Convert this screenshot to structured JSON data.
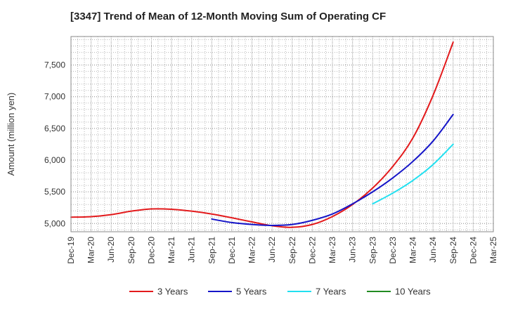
{
  "chart_data": {
    "type": "line",
    "title": "[3347]  Trend of Mean of 12-Month Moving Sum of Operating CF",
    "xlabel": "",
    "ylabel": "Amount (million yen)",
    "ylim": [
      4870,
      7950
    ],
    "yticks": [
      5000,
      5500,
      6000,
      6500,
      7000,
      7500
    ],
    "ytick_labels": [
      "5,000",
      "5,500",
      "6,000",
      "6,500",
      "7,000",
      "7,500"
    ],
    "x_categories": [
      "Dec-19",
      "Mar-20",
      "Jun-20",
      "Sep-20",
      "Dec-20",
      "Mar-21",
      "Jun-21",
      "Sep-21",
      "Dec-21",
      "Mar-22",
      "Jun-22",
      "Sep-22",
      "Dec-22",
      "Mar-23",
      "Jun-23",
      "Sep-23",
      "Dec-23",
      "Mar-24",
      "Jun-24",
      "Sep-24",
      "Dec-24",
      "Mar-25"
    ],
    "grid": true,
    "legend_position": "bottom",
    "series": [
      {
        "name": "3 Years",
        "color": "#e31a1c",
        "points": [
          {
            "x": 0,
            "y": 5100
          },
          {
            "x": 1,
            "y": 5108
          },
          {
            "x": 2,
            "y": 5140
          },
          {
            "x": 3,
            "y": 5195
          },
          {
            "x": 4,
            "y": 5230
          },
          {
            "x": 5,
            "y": 5225
          },
          {
            "x": 6,
            "y": 5195
          },
          {
            "x": 7,
            "y": 5150
          },
          {
            "x": 8,
            "y": 5090
          },
          {
            "x": 9,
            "y": 5025
          },
          {
            "x": 10,
            "y": 4965
          },
          {
            "x": 11,
            "y": 4940
          },
          {
            "x": 12,
            "y": 4985
          },
          {
            "x": 13,
            "y": 5110
          },
          {
            "x": 14,
            "y": 5300
          },
          {
            "x": 15,
            "y": 5560
          },
          {
            "x": 16,
            "y": 5900
          },
          {
            "x": 17,
            "y": 6350
          },
          {
            "x": 18,
            "y": 7020
          },
          {
            "x": 19,
            "y": 7860
          }
        ]
      },
      {
        "name": "5 Years",
        "color": "#1515c8",
        "points": [
          {
            "x": 7,
            "y": 5070
          },
          {
            "x": 8,
            "y": 5015
          },
          {
            "x": 9,
            "y": 4985
          },
          {
            "x": 10,
            "y": 4970
          },
          {
            "x": 11,
            "y": 4985
          },
          {
            "x": 12,
            "y": 5050
          },
          {
            "x": 13,
            "y": 5150
          },
          {
            "x": 14,
            "y": 5310
          },
          {
            "x": 15,
            "y": 5500
          },
          {
            "x": 16,
            "y": 5720
          },
          {
            "x": 17,
            "y": 5980
          },
          {
            "x": 18,
            "y": 6300
          },
          {
            "x": 19,
            "y": 6720
          }
        ]
      },
      {
        "name": "7 Years",
        "color": "#22e0f0",
        "points": [
          {
            "x": 15,
            "y": 5310
          },
          {
            "x": 16,
            "y": 5480
          },
          {
            "x": 17,
            "y": 5680
          },
          {
            "x": 18,
            "y": 5930
          },
          {
            "x": 19,
            "y": 6250
          }
        ]
      },
      {
        "name": "10 Years",
        "color": "#228b22",
        "points": []
      }
    ]
  }
}
